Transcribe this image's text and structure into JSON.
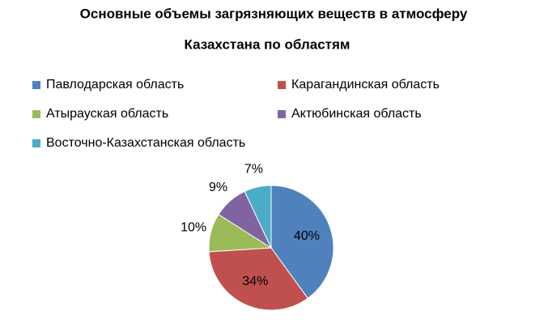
{
  "chart_data": {
    "type": "pie",
    "title": [
      "Основные объемы загрязняющих веществ в атмосферу",
      "Казахстана по областям"
    ],
    "series": [
      {
        "name": "Павлодарская область",
        "color": "#4f81bd",
        "values": [
          40
        ],
        "value_labels": [
          "40%"
        ]
      },
      {
        "name": "Карагандинская область",
        "color": "#c0504d",
        "values": [
          34
        ],
        "value_labels": [
          "34%"
        ]
      },
      {
        "name": "Атырауская область",
        "color": "#9bbb59",
        "values": [
          10
        ],
        "value_labels": [
          "10%"
        ]
      },
      {
        "name": "Актюбинская область",
        "color": "#8064a2",
        "values": [
          9
        ],
        "value_labels": [
          "9%"
        ]
      },
      {
        "name": "Восточно-Казахстанская область",
        "color": "#4bacc6",
        "values": [
          7
        ],
        "value_labels": [
          "7%"
        ]
      }
    ],
    "legend": "top"
  }
}
